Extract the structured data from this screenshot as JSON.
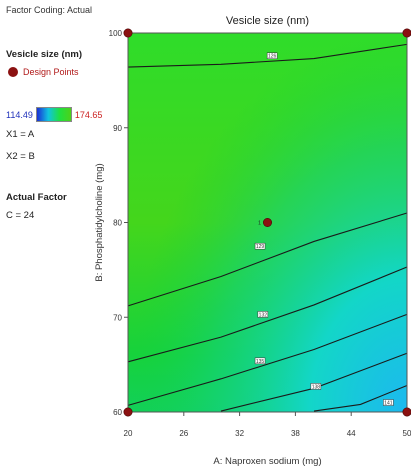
{
  "legend": {
    "coding": "Factor Coding: Actual",
    "response_title": "Vesicle size (nm)",
    "design_points_label": "Design Points",
    "scale_min": "114.49",
    "scale_max": "174.65",
    "x1": "X1 = A",
    "x2": "X2 = B",
    "actual_factor_title": "Actual Factor",
    "actual_factor_value": "C = 24"
  },
  "colors": {
    "low": "#1a2fd6",
    "mid": "#12d23a",
    "high": "#5fd61a",
    "design_point": "#8b1111"
  },
  "chart_data": {
    "type": "contour",
    "title": "Vesicle size (nm)",
    "xlabel": "A: Naproxen sodium (mg)",
    "ylabel": "B: Phosphatidylcholine (mg)",
    "xlim": [
      20,
      50
    ],
    "ylim": [
      60,
      100
    ],
    "x_ticks": [
      "20",
      "26",
      "32",
      "38",
      "44",
      "50"
    ],
    "y_ticks": [
      "60",
      "70",
      "80",
      "90",
      "100"
    ],
    "contours": [
      {
        "level": 1,
        "label": "126",
        "points": [
          [
            20,
            96.4
          ],
          [
            30,
            96.7
          ],
          [
            40,
            97.3
          ],
          [
            50,
            98.8
          ]
        ],
        "label_at": [
          35.5,
          97.6
        ]
      },
      {
        "level": 2,
        "label": "129",
        "points": [
          [
            20,
            71.2
          ],
          [
            30,
            74.3
          ],
          [
            40,
            78.0
          ],
          [
            50,
            81.0
          ]
        ],
        "label_at": [
          34.2,
          77.5
        ]
      },
      {
        "level": 3,
        "label": "132",
        "points": [
          [
            20,
            65.3
          ],
          [
            30,
            67.9
          ],
          [
            40,
            71.3
          ],
          [
            50,
            75.3
          ]
        ],
        "label_at": [
          34.5,
          70.3
        ]
      },
      {
        "level": 4,
        "label": "135",
        "points": [
          [
            20,
            60.7
          ],
          [
            30,
            63.5
          ],
          [
            40,
            66.6
          ],
          [
            50,
            70.3
          ]
        ],
        "label_at": [
          34.2,
          65.4
        ]
      },
      {
        "level": 5,
        "label": "138",
        "points": [
          [
            30,
            60.1
          ],
          [
            40,
            62.5
          ],
          [
            50,
            66.2
          ]
        ],
        "label_at": [
          40.2,
          62.7
        ]
      },
      {
        "level": 6,
        "label": "141",
        "points": [
          [
            40,
            60.1
          ],
          [
            45,
            60.8
          ],
          [
            50,
            62.8
          ]
        ],
        "label_at": [
          48.0,
          61.0
        ]
      }
    ],
    "design_points": [
      {
        "x": 20,
        "y": 100
      },
      {
        "x": 50,
        "y": 100
      },
      {
        "x": 20,
        "y": 60
      },
      {
        "x": 50,
        "y": 60
      },
      {
        "x": 35,
        "y": 80
      }
    ],
    "center_point_count": "1"
  }
}
